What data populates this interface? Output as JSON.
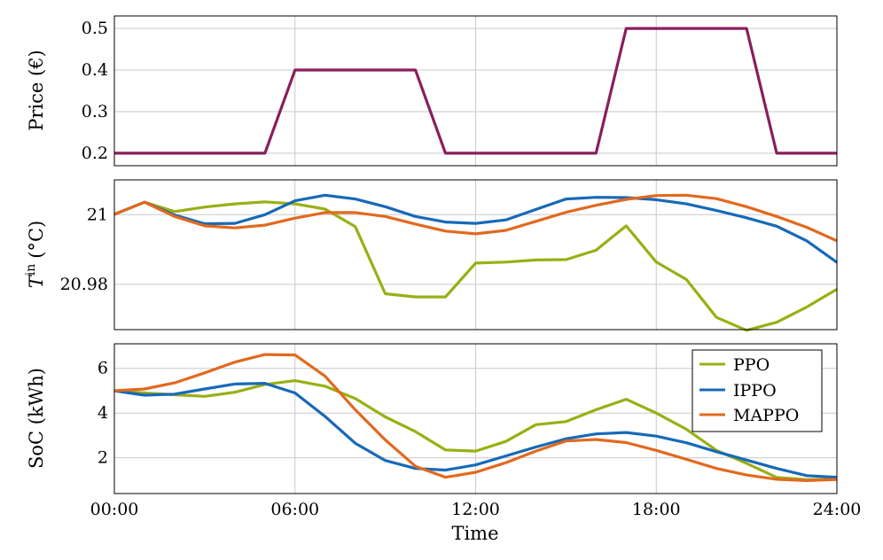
{
  "chart_data": [
    {
      "type": "line",
      "ylabel": "Price (€)",
      "ylim": [
        0.17,
        0.53
      ],
      "yticks": [
        "0.2",
        "0.3",
        "0.4",
        "0.5"
      ],
      "ytick_values": [
        0.2,
        0.3,
        0.4,
        0.5
      ],
      "grid": true,
      "series": [
        {
          "color": "#8b1d5c",
          "x": [
            0,
            5,
            6,
            10,
            11,
            16,
            17,
            21,
            22,
            24
          ],
          "values": [
            0.2,
            0.2,
            0.4,
            0.4,
            0.2,
            0.2,
            0.5,
            0.5,
            0.2,
            0.2
          ]
        }
      ]
    },
    {
      "type": "line",
      "ylabel_main": "T",
      "ylabel_sup": "in",
      "ylabel_unit": "(°C)",
      "ylim": [
        20.967,
        21.01
      ],
      "yticks": [
        "20.98",
        "21"
      ],
      "ytick_values": [
        20.98,
        21.0
      ],
      "grid": true,
      "series": [
        {
          "name": "PPO",
          "color": "#9aaf14",
          "x": [
            0,
            1,
            2,
            3,
            4,
            5,
            6,
            7,
            8,
            9,
            10,
            11,
            12,
            13,
            14,
            15,
            16,
            17,
            18,
            19,
            20,
            21,
            22,
            23,
            24
          ],
          "values": [
            21.0001,
            21.0036,
            21.0009,
            21.0022,
            21.0031,
            21.0037,
            21.0031,
            21.0016,
            20.9966,
            20.9773,
            20.9764,
            20.9764,
            20.9861,
            20.9864,
            20.987,
            20.9871,
            20.9898,
            20.9968,
            20.9864,
            20.9814,
            20.9705,
            20.9668,
            20.9691,
            20.9735,
            20.9786
          ]
        },
        {
          "name": "IPPO",
          "color": "#1769b8",
          "x": [
            0,
            1,
            2,
            3,
            4,
            5,
            6,
            7,
            8,
            9,
            10,
            11,
            12,
            13,
            14,
            15,
            16,
            17,
            18,
            19,
            20,
            21,
            22,
            23,
            24
          ],
          "values": [
            21.0001,
            21.0036,
            20.9999,
            20.9974,
            20.9975,
            21.0,
            21.004,
            21.0056,
            21.0045,
            21.0023,
            20.9995,
            20.9979,
            20.9975,
            20.9985,
            21.0015,
            21.0045,
            21.005,
            21.0049,
            21.0043,
            21.0031,
            21.0012,
            20.9991,
            20.9967,
            20.9925,
            20.9863
          ]
        },
        {
          "name": "MAPPO",
          "color": "#e2691e",
          "x": [
            0,
            1,
            2,
            3,
            4,
            5,
            6,
            7,
            8,
            9,
            10,
            11,
            12,
            13,
            14,
            15,
            16,
            17,
            18,
            19,
            20,
            21,
            22,
            23,
            24
          ],
          "values": [
            21.0001,
            21.0036,
            20.9995,
            20.9968,
            20.9962,
            20.997,
            20.999,
            21.0006,
            21.0006,
            20.9995,
            20.9973,
            20.9953,
            20.9945,
            20.9955,
            20.9981,
            21.0007,
            21.0027,
            21.0044,
            21.0055,
            21.0056,
            21.0046,
            21.0023,
            20.9995,
            20.9964,
            20.9925
          ]
        }
      ]
    },
    {
      "type": "line",
      "xlabel": "Time",
      "ylabel": "SoC (kWh)",
      "ylim": [
        0.4,
        7.1
      ],
      "yticks": [
        "2",
        "4",
        "6"
      ],
      "ytick_values": [
        2,
        4,
        6
      ],
      "xlim": [
        0,
        24
      ],
      "xticks": [
        "00:00",
        "06:00",
        "12:00",
        "18:00",
        "24:00"
      ],
      "xtick_values": [
        0,
        6,
        12,
        18,
        24
      ],
      "grid": true,
      "legend": "top-right",
      "series": [
        {
          "name": "PPO",
          "color": "#9aaf14",
          "x": [
            0,
            1,
            2,
            3,
            4,
            5,
            6,
            7,
            8,
            9,
            10,
            11,
            12,
            13,
            14,
            15,
            16,
            17,
            18,
            19,
            20,
            21,
            22,
            23,
            24
          ],
          "values": [
            5.0,
            4.9,
            4.82,
            4.75,
            4.93,
            5.28,
            5.45,
            5.2,
            4.65,
            3.83,
            3.17,
            2.35,
            2.3,
            2.73,
            3.48,
            3.62,
            4.15,
            4.62,
            4.0,
            3.28,
            2.33,
            1.75,
            1.12,
            1.02,
            1.05
          ]
        },
        {
          "name": "IPPO",
          "color": "#1769b8",
          "x": [
            0,
            1,
            2,
            3,
            4,
            5,
            6,
            7,
            8,
            9,
            10,
            11,
            12,
            13,
            14,
            15,
            16,
            17,
            18,
            19,
            20,
            21,
            22,
            23,
            24
          ],
          "values": [
            5.0,
            4.8,
            4.85,
            5.08,
            5.3,
            5.33,
            4.9,
            3.85,
            2.65,
            1.88,
            1.52,
            1.45,
            1.68,
            2.08,
            2.48,
            2.85,
            3.07,
            3.13,
            2.97,
            2.67,
            2.27,
            1.9,
            1.52,
            1.2,
            1.13
          ]
        },
        {
          "name": "MAPPO",
          "color": "#e2691e",
          "x": [
            0,
            1,
            2,
            3,
            4,
            5,
            6,
            7,
            8,
            9,
            10,
            11,
            12,
            13,
            14,
            15,
            16,
            17,
            18,
            19,
            20,
            21,
            22,
            23,
            24
          ],
          "values": [
            5.0,
            5.08,
            5.35,
            5.8,
            6.28,
            6.62,
            6.6,
            5.65,
            4.15,
            2.8,
            1.62,
            1.13,
            1.35,
            1.78,
            2.3,
            2.75,
            2.82,
            2.68,
            2.33,
            1.93,
            1.52,
            1.23,
            1.04,
            0.98,
            1.03
          ]
        }
      ]
    }
  ]
}
